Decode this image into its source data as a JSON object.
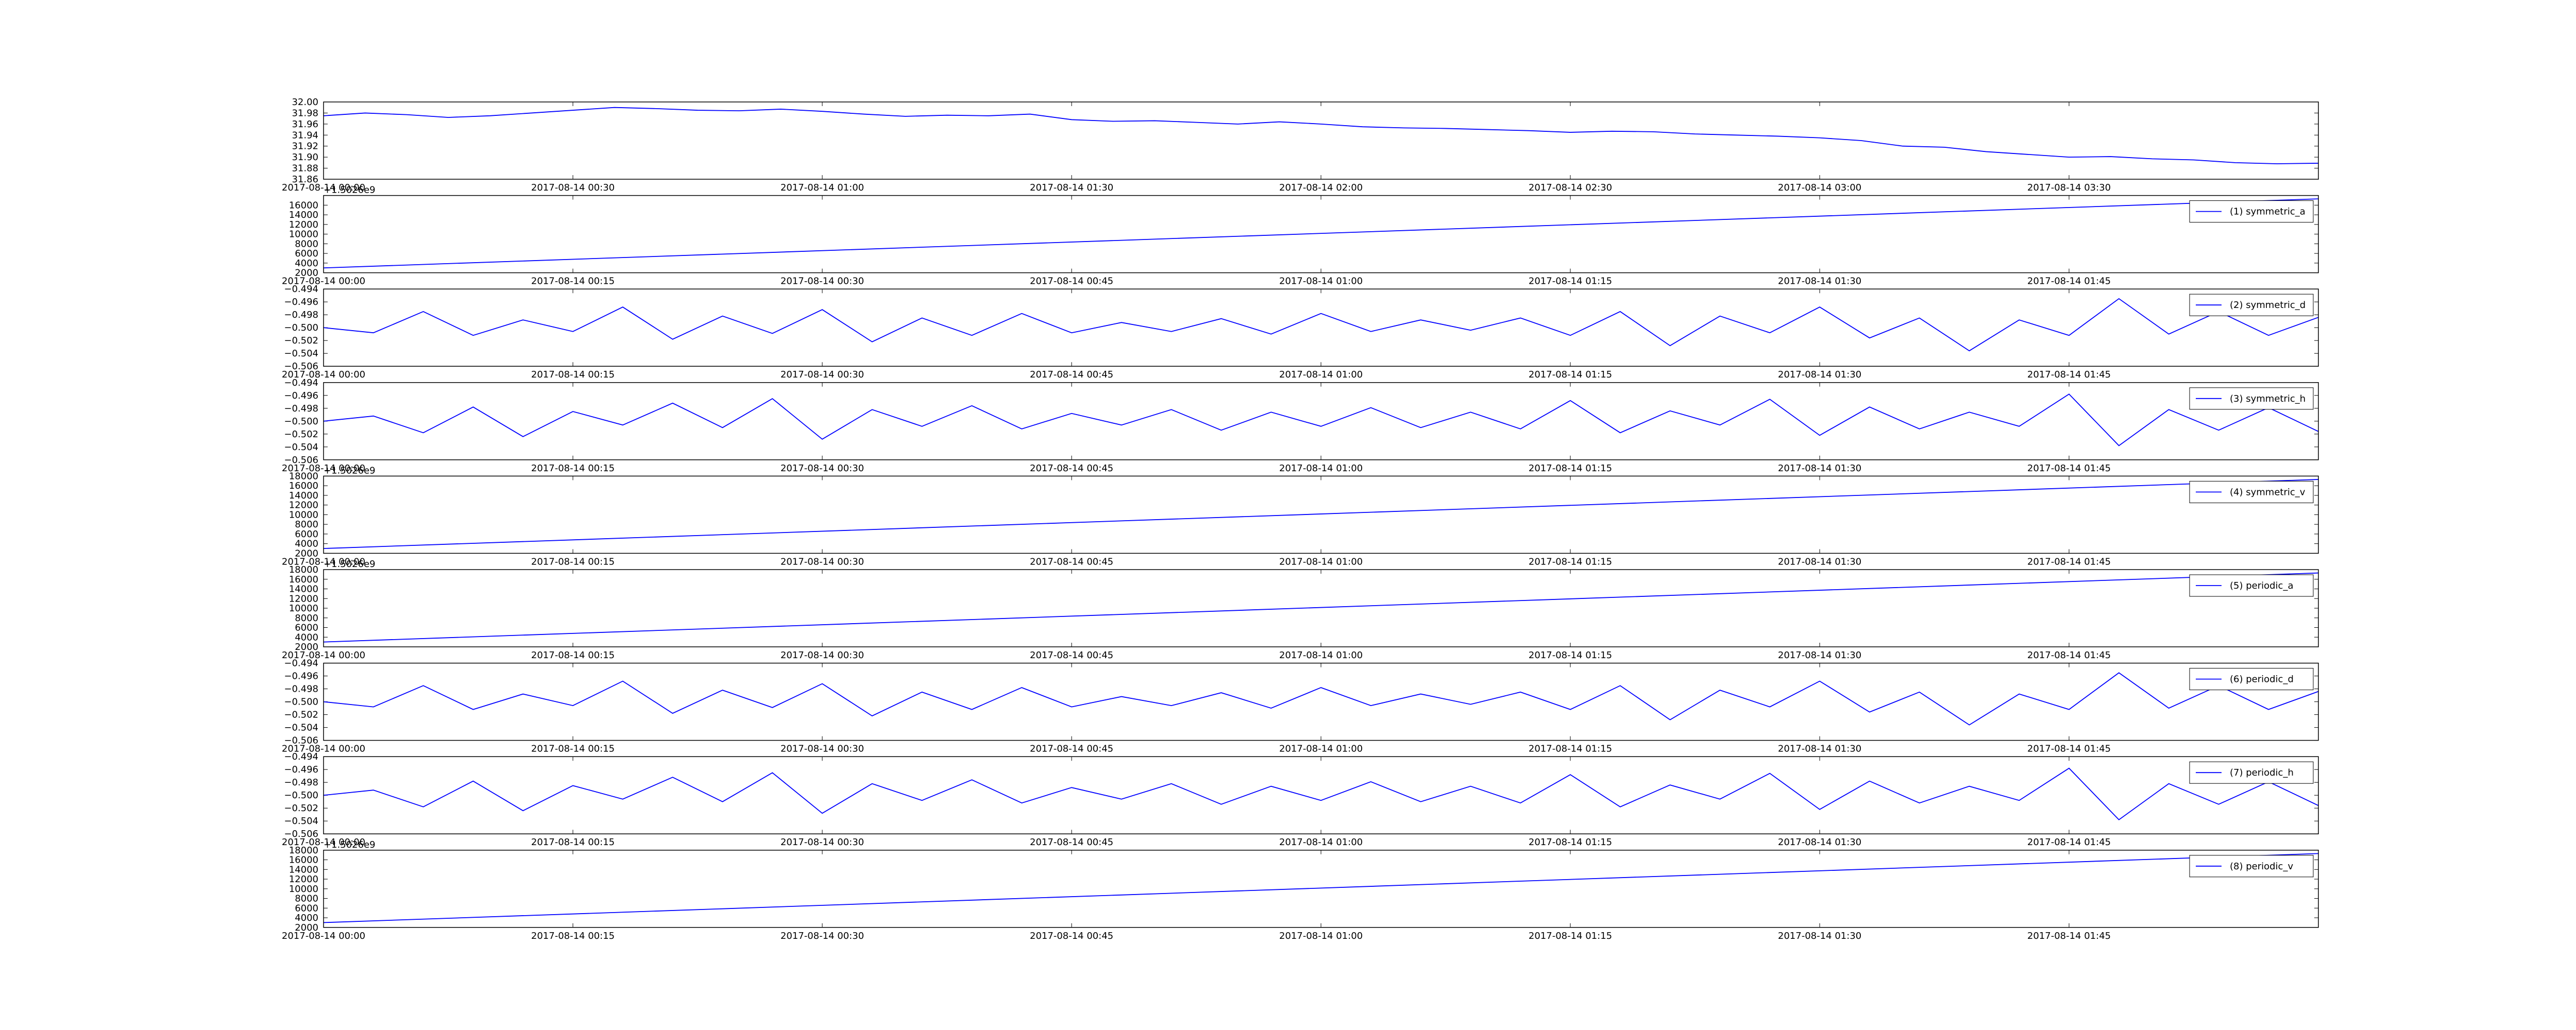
{
  "chart_data": [
    {
      "type": "line",
      "x": [
        0,
        5,
        10,
        15,
        20,
        25,
        30,
        35,
        40,
        45,
        50,
        55,
        60,
        65,
        70,
        75,
        80,
        85,
        90,
        95,
        100,
        105,
        110,
        115,
        120,
        125,
        130,
        135,
        140,
        145,
        150,
        155,
        160,
        165,
        170,
        175,
        180,
        185,
        190,
        195,
        200,
        205,
        210,
        215,
        220,
        225,
        230,
        235,
        240
      ],
      "series": [
        {
          "color": "#0000ff",
          "values": [
            31.975,
            31.98,
            31.977,
            31.972,
            31.975,
            31.98,
            31.985,
            31.99,
            31.988,
            31.985,
            31.984,
            31.987,
            31.983,
            31.978,
            31.974,
            31.976,
            31.975,
            31.978,
            31.968,
            31.965,
            31.966,
            31.963,
            31.96,
            31.964,
            31.96,
            31.955,
            31.953,
            31.952,
            31.95,
            31.948,
            31.945,
            31.947,
            31.946,
            31.942,
            31.94,
            31.938,
            31.935,
            31.93,
            31.92,
            31.918,
            31.91,
            31.905,
            31.9,
            31.901,
            31.897,
            31.895,
            31.89,
            31.888,
            31.889
          ]
        }
      ],
      "xlim": [
        0,
        240
      ],
      "xticks": [
        {
          "value": 0,
          "label": "2017-08-14 00:00"
        },
        {
          "value": 30,
          "label": "2017-08-14 00:30"
        },
        {
          "value": 60,
          "label": "2017-08-14 01:00"
        },
        {
          "value": 90,
          "label": "2017-08-14 01:30"
        },
        {
          "value": 120,
          "label": "2017-08-14 02:00"
        },
        {
          "value": 150,
          "label": "2017-08-14 02:30"
        },
        {
          "value": 180,
          "label": "2017-08-14 03:00"
        },
        {
          "value": 210,
          "label": "2017-08-14 03:30"
        }
      ],
      "ylim": [
        31.86,
        32.0
      ],
      "yticks": [
        31.86,
        31.88,
        {
          "value": 31.9,
          "label": "31.90"
        },
        31.92,
        31.94,
        31.96,
        31.98,
        {
          "value": 32.0,
          "label": "32.00"
        }
      ]
    },
    {
      "type": "line",
      "y_offset_label": "+1.5026e9",
      "legend": "upper right",
      "x": [
        0,
        120
      ],
      "series": [
        {
          "name": "(1) symmetric_a",
          "color": "#0000ff",
          "values": [
            3000,
            17300
          ]
        }
      ],
      "xlim": [
        0,
        120
      ],
      "xticks": [
        {
          "value": 0,
          "label": "2017-08-14 00:00"
        },
        {
          "value": 15,
          "label": "2017-08-14 00:15"
        },
        {
          "value": 30,
          "label": "2017-08-14 00:30"
        },
        {
          "value": 45,
          "label": "2017-08-14 00:45"
        },
        {
          "value": 60,
          "label": "2017-08-14 01:00"
        },
        {
          "value": 75,
          "label": "2017-08-14 01:15"
        },
        {
          "value": 90,
          "label": "2017-08-14 01:30"
        },
        {
          "value": 105,
          "label": "2017-08-14 01:45"
        }
      ],
      "ylim": [
        2000,
        18000
      ],
      "yticks": [
        2000,
        4000,
        6000,
        8000,
        10000,
        12000,
        14000,
        16000
      ]
    },
    {
      "type": "line",
      "legend": "upper right",
      "x": [
        0,
        3,
        6,
        9,
        12,
        15,
        18,
        21,
        24,
        27,
        30,
        33,
        36,
        39,
        42,
        45,
        48,
        51,
        54,
        57,
        60,
        63,
        66,
        69,
        72,
        75,
        78,
        81,
        84,
        87,
        90,
        93,
        96,
        99,
        102,
        105,
        108,
        111,
        114,
        117,
        120
      ],
      "series": [
        {
          "name": "(2) symmetric_d",
          "color": "#0000ff",
          "values": [
            -0.5,
            -0.5008,
            -0.4975,
            -0.5012,
            -0.4988,
            -0.5006,
            -0.4968,
            -0.5018,
            -0.4982,
            -0.5009,
            -0.4972,
            -0.5022,
            -0.4985,
            -0.5012,
            -0.4978,
            -0.5008,
            -0.4992,
            -0.5006,
            -0.4986,
            -0.501,
            -0.4978,
            -0.5006,
            -0.4988,
            -0.5004,
            -0.4985,
            -0.5012,
            -0.4975,
            -0.5028,
            -0.4982,
            -0.5008,
            -0.4968,
            -0.5016,
            -0.4985,
            -0.5036,
            -0.4988,
            -0.5012,
            -0.4955,
            -0.501,
            -0.4975,
            -0.5012,
            -0.4984
          ]
        }
      ],
      "xlim": [
        0,
        120
      ],
      "xticks": [
        {
          "value": 0,
          "label": "2017-08-14 00:00"
        },
        {
          "value": 15,
          "label": "2017-08-14 00:15"
        },
        {
          "value": 30,
          "label": "2017-08-14 00:30"
        },
        {
          "value": 45,
          "label": "2017-08-14 00:45"
        },
        {
          "value": 60,
          "label": "2017-08-14 01:00"
        },
        {
          "value": 75,
          "label": "2017-08-14 01:15"
        },
        {
          "value": 90,
          "label": "2017-08-14 01:30"
        },
        {
          "value": 105,
          "label": "2017-08-14 01:45"
        }
      ],
      "ylim": [
        -0.506,
        -0.494
      ],
      "yticks": [
        {
          "value": -0.506,
          "label": "−0.506"
        },
        {
          "value": -0.504,
          "label": "−0.504"
        },
        {
          "value": -0.502,
          "label": "−0.502"
        },
        {
          "value": -0.5,
          "label": "−0.500"
        },
        {
          "value": -0.498,
          "label": "−0.498"
        },
        {
          "value": -0.496,
          "label": "−0.496"
        },
        {
          "value": -0.494,
          "label": "−0.494"
        }
      ]
    },
    {
      "type": "line",
      "legend": "upper right",
      "x": [
        0,
        3,
        6,
        9,
        12,
        15,
        18,
        21,
        24,
        27,
        30,
        33,
        36,
        39,
        42,
        45,
        48,
        51,
        54,
        57,
        60,
        63,
        66,
        69,
        72,
        75,
        78,
        81,
        84,
        87,
        90,
        93,
        96,
        99,
        102,
        105,
        108,
        111,
        114,
        117,
        120
      ],
      "series": [
        {
          "name": "(3) symmetric_h",
          "color": "#0000ff",
          "values": [
            -0.5,
            -0.4992,
            -0.5018,
            -0.4978,
            -0.5024,
            -0.4985,
            -0.5006,
            -0.4972,
            -0.501,
            -0.4965,
            -0.5028,
            -0.4982,
            -0.5008,
            -0.4976,
            -0.5012,
            -0.4988,
            -0.5006,
            -0.4982,
            -0.5014,
            -0.4986,
            -0.5008,
            -0.4979,
            -0.501,
            -0.4986,
            -0.5012,
            -0.4968,
            -0.5018,
            -0.4984,
            -0.5006,
            -0.4966,
            -0.5022,
            -0.4978,
            -0.5012,
            -0.4986,
            -0.5008,
            -0.4958,
            -0.5038,
            -0.4982,
            -0.5014,
            -0.4979,
            -0.5016
          ]
        }
      ],
      "xlim": [
        0,
        120
      ],
      "xticks": [
        {
          "value": 0,
          "label": "2017-08-14 00:00"
        },
        {
          "value": 15,
          "label": "2017-08-14 00:15"
        },
        {
          "value": 30,
          "label": "2017-08-14 00:30"
        },
        {
          "value": 45,
          "label": "2017-08-14 00:45"
        },
        {
          "value": 60,
          "label": "2017-08-14 01:00"
        },
        {
          "value": 75,
          "label": "2017-08-14 01:15"
        },
        {
          "value": 90,
          "label": "2017-08-14 01:30"
        },
        {
          "value": 105,
          "label": "2017-08-14 01:45"
        }
      ],
      "ylim": [
        -0.506,
        -0.494
      ],
      "yticks": [
        {
          "value": -0.506,
          "label": "−0.506"
        },
        {
          "value": -0.504,
          "label": "−0.504"
        },
        {
          "value": -0.502,
          "label": "−0.502"
        },
        {
          "value": -0.5,
          "label": "−0.500"
        },
        {
          "value": -0.498,
          "label": "−0.498"
        },
        {
          "value": -0.496,
          "label": "−0.496"
        },
        {
          "value": -0.494,
          "label": "−0.494"
        }
      ]
    },
    {
      "type": "line",
      "y_offset_label": "+1.5026e9",
      "legend": "upper right",
      "x": [
        0,
        120
      ],
      "series": [
        {
          "name": "(4) symmetric_v",
          "color": "#0000ff",
          "values": [
            3000,
            17300
          ]
        }
      ],
      "xlim": [
        0,
        120
      ],
      "xticks": [
        {
          "value": 0,
          "label": "2017-08-14 00:00"
        },
        {
          "value": 15,
          "label": "2017-08-14 00:15"
        },
        {
          "value": 30,
          "label": "2017-08-14 00:30"
        },
        {
          "value": 45,
          "label": "2017-08-14 00:45"
        },
        {
          "value": 60,
          "label": "2017-08-14 01:00"
        },
        {
          "value": 75,
          "label": "2017-08-14 01:15"
        },
        {
          "value": 90,
          "label": "2017-08-14 01:30"
        },
        {
          "value": 105,
          "label": "2017-08-14 01:45"
        }
      ],
      "ylim": [
        2000,
        18000
      ],
      "yticks": [
        2000,
        4000,
        6000,
        8000,
        10000,
        12000,
        14000,
        16000,
        18000
      ]
    },
    {
      "type": "line",
      "y_offset_label": "+1.5026e9",
      "legend": "upper right",
      "x": [
        0,
        120
      ],
      "series": [
        {
          "name": "(5) periodic_a",
          "color": "#0000ff",
          "values": [
            3000,
            17300
          ]
        }
      ],
      "xlim": [
        0,
        120
      ],
      "xticks": [
        {
          "value": 0,
          "label": "2017-08-14 00:00"
        },
        {
          "value": 15,
          "label": "2017-08-14 00:15"
        },
        {
          "value": 30,
          "label": "2017-08-14 00:30"
        },
        {
          "value": 45,
          "label": "2017-08-14 00:45"
        },
        {
          "value": 60,
          "label": "2017-08-14 01:00"
        },
        {
          "value": 75,
          "label": "2017-08-14 01:15"
        },
        {
          "value": 90,
          "label": "2017-08-14 01:30"
        },
        {
          "value": 105,
          "label": "2017-08-14 01:45"
        }
      ],
      "ylim": [
        2000,
        18000
      ],
      "yticks": [
        2000,
        4000,
        6000,
        8000,
        10000,
        12000,
        14000,
        16000,
        18000
      ]
    },
    {
      "type": "line",
      "legend": "upper right",
      "x": [
        0,
        3,
        6,
        9,
        12,
        15,
        18,
        21,
        24,
        27,
        30,
        33,
        36,
        39,
        42,
        45,
        48,
        51,
        54,
        57,
        60,
        63,
        66,
        69,
        72,
        75,
        78,
        81,
        84,
        87,
        90,
        93,
        96,
        99,
        102,
        105,
        108,
        111,
        114,
        117,
        120
      ],
      "series": [
        {
          "name": "(6) periodic_d",
          "color": "#0000ff",
          "values": [
            -0.5,
            -0.5008,
            -0.4975,
            -0.5012,
            -0.4988,
            -0.5006,
            -0.4968,
            -0.5018,
            -0.4982,
            -0.5009,
            -0.4972,
            -0.5022,
            -0.4985,
            -0.5012,
            -0.4978,
            -0.5008,
            -0.4992,
            -0.5006,
            -0.4986,
            -0.501,
            -0.4978,
            -0.5006,
            -0.4988,
            -0.5004,
            -0.4985,
            -0.5012,
            -0.4975,
            -0.5028,
            -0.4982,
            -0.5008,
            -0.4968,
            -0.5016,
            -0.4985,
            -0.5036,
            -0.4988,
            -0.5012,
            -0.4955,
            -0.501,
            -0.4975,
            -0.5012,
            -0.4984
          ]
        }
      ],
      "xlim": [
        0,
        120
      ],
      "xticks": [
        {
          "value": 0,
          "label": "2017-08-14 00:00"
        },
        {
          "value": 15,
          "label": "2017-08-14 00:15"
        },
        {
          "value": 30,
          "label": "2017-08-14 00:30"
        },
        {
          "value": 45,
          "label": "2017-08-14 00:45"
        },
        {
          "value": 60,
          "label": "2017-08-14 01:00"
        },
        {
          "value": 75,
          "label": "2017-08-14 01:15"
        },
        {
          "value": 90,
          "label": "2017-08-14 01:30"
        },
        {
          "value": 105,
          "label": "2017-08-14 01:45"
        }
      ],
      "ylim": [
        -0.506,
        -0.494
      ],
      "yticks": [
        {
          "value": -0.506,
          "label": "−0.506"
        },
        {
          "value": -0.504,
          "label": "−0.504"
        },
        {
          "value": -0.502,
          "label": "−0.502"
        },
        {
          "value": -0.5,
          "label": "−0.500"
        },
        {
          "value": -0.498,
          "label": "−0.498"
        },
        {
          "value": -0.496,
          "label": "−0.496"
        },
        {
          "value": -0.494,
          "label": "−0.494"
        }
      ]
    },
    {
      "type": "line",
      "legend": "upper right",
      "x": [
        0,
        3,
        6,
        9,
        12,
        15,
        18,
        21,
        24,
        27,
        30,
        33,
        36,
        39,
        42,
        45,
        48,
        51,
        54,
        57,
        60,
        63,
        66,
        69,
        72,
        75,
        78,
        81,
        84,
        87,
        90,
        93,
        96,
        99,
        102,
        105,
        108,
        111,
        114,
        117,
        120
      ],
      "series": [
        {
          "name": "(7) periodic_h",
          "color": "#0000ff",
          "values": [
            -0.5,
            -0.4992,
            -0.5018,
            -0.4978,
            -0.5024,
            -0.4985,
            -0.5006,
            -0.4972,
            -0.501,
            -0.4965,
            -0.5028,
            -0.4982,
            -0.5008,
            -0.4976,
            -0.5012,
            -0.4988,
            -0.5006,
            -0.4982,
            -0.5014,
            -0.4986,
            -0.5008,
            -0.4979,
            -0.501,
            -0.4986,
            -0.5012,
            -0.4968,
            -0.5018,
            -0.4984,
            -0.5006,
            -0.4966,
            -0.5022,
            -0.4978,
            -0.5012,
            -0.4986,
            -0.5008,
            -0.4958,
            -0.5038,
            -0.4982,
            -0.5014,
            -0.4979,
            -0.5016
          ]
        }
      ],
      "xlim": [
        0,
        120
      ],
      "xticks": [
        {
          "value": 0,
          "label": "2017-08-14 00:00"
        },
        {
          "value": 15,
          "label": "2017-08-14 00:15"
        },
        {
          "value": 30,
          "label": "2017-08-14 00:30"
        },
        {
          "value": 45,
          "label": "2017-08-14 00:45"
        },
        {
          "value": 60,
          "label": "2017-08-14 01:00"
        },
        {
          "value": 75,
          "label": "2017-08-14 01:15"
        },
        {
          "value": 90,
          "label": "2017-08-14 01:30"
        },
        {
          "value": 105,
          "label": "2017-08-14 01:45"
        }
      ],
      "ylim": [
        -0.506,
        -0.494
      ],
      "yticks": [
        {
          "value": -0.506,
          "label": "−0.506"
        },
        {
          "value": -0.504,
          "label": "−0.504"
        },
        {
          "value": -0.502,
          "label": "−0.502"
        },
        {
          "value": -0.5,
          "label": "−0.500"
        },
        {
          "value": -0.498,
          "label": "−0.498"
        },
        {
          "value": -0.496,
          "label": "−0.496"
        },
        {
          "value": -0.494,
          "label": "−0.494"
        }
      ]
    },
    {
      "type": "line",
      "y_offset_label": "+1.5026e9",
      "legend": "upper right",
      "x": [
        0,
        120
      ],
      "series": [
        {
          "name": "(8) periodic_v",
          "color": "#0000ff",
          "values": [
            3000,
            17300
          ]
        }
      ],
      "xlim": [
        0,
        120
      ],
      "xticks": [
        {
          "value": 0,
          "label": "2017-08-14 00:00"
        },
        {
          "value": 15,
          "label": "2017-08-14 00:15"
        },
        {
          "value": 30,
          "label": "2017-08-14 00:30"
        },
        {
          "value": 45,
          "label": "2017-08-14 00:45"
        },
        {
          "value": 60,
          "label": "2017-08-14 01:00"
        },
        {
          "value": 75,
          "label": "2017-08-14 01:15"
        },
        {
          "value": 90,
          "label": "2017-08-14 01:30"
        },
        {
          "value": 105,
          "label": "2017-08-14 01:45"
        }
      ],
      "ylim": [
        2000,
        18000
      ],
      "yticks": [
        2000,
        4000,
        6000,
        8000,
        10000,
        12000,
        14000,
        16000,
        18000
      ]
    }
  ]
}
